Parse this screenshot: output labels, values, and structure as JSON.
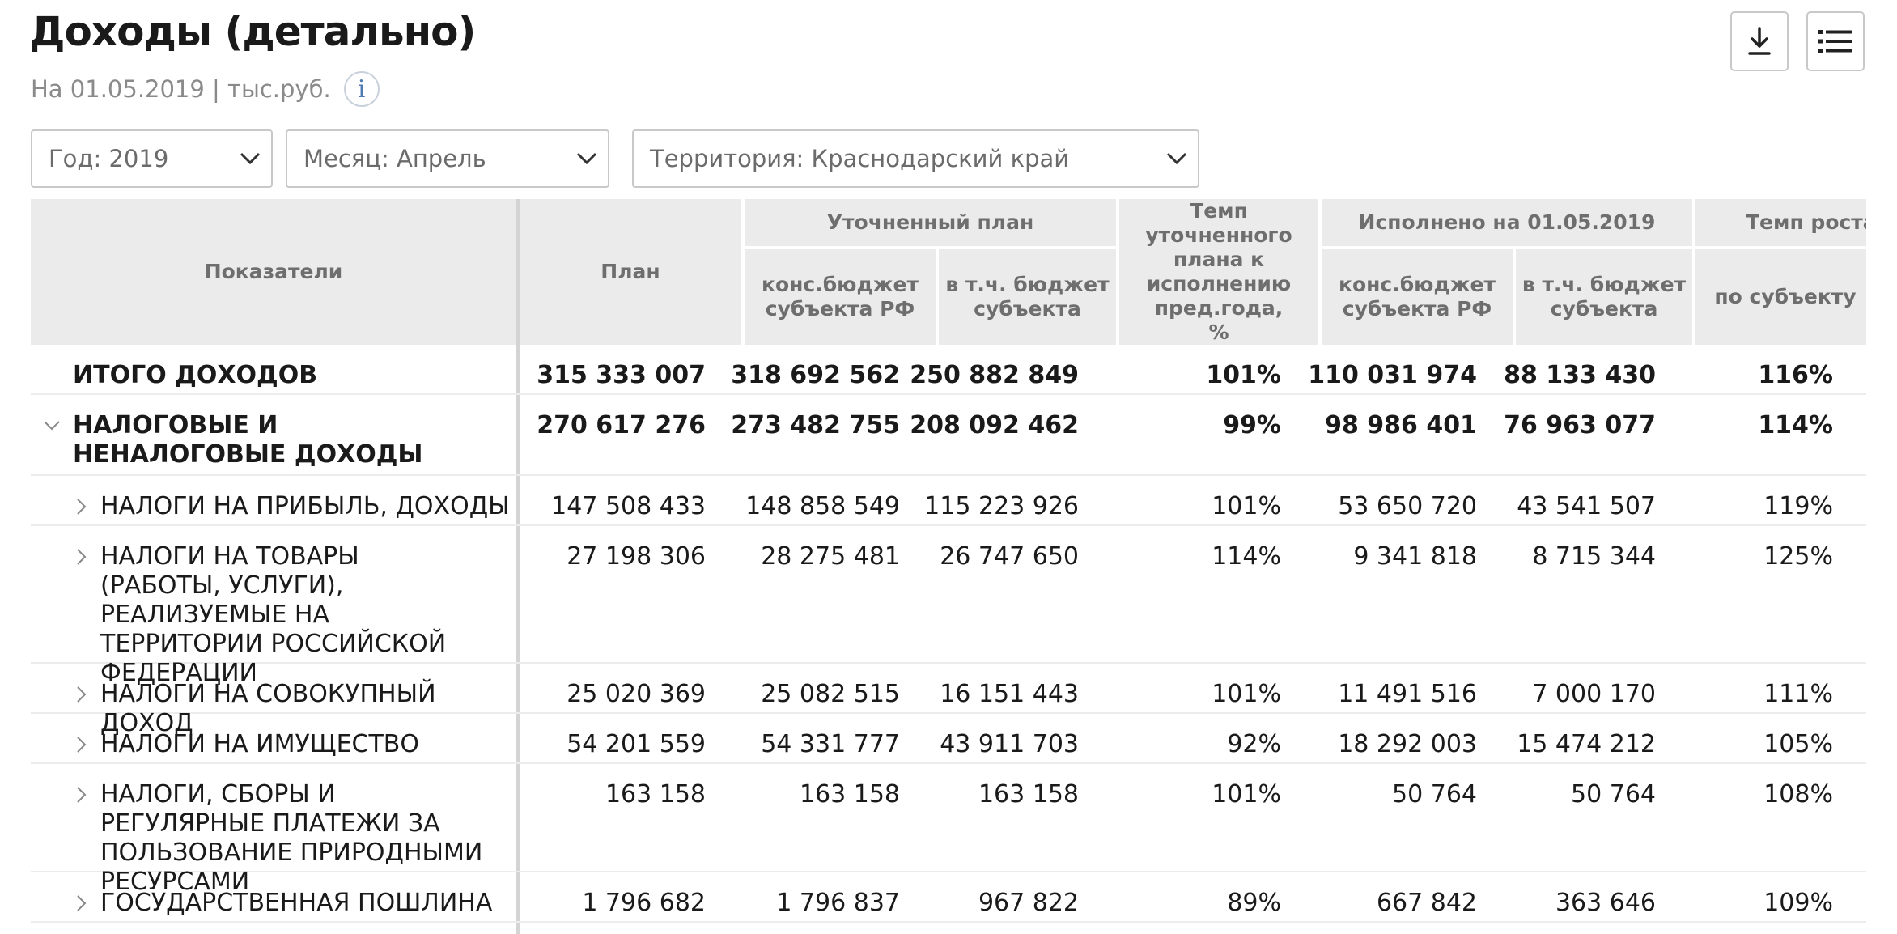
{
  "header": {
    "title": "Доходы (детально)",
    "subtitle": "На 01.05.2019 | тыс.руб.",
    "info_glyph": "i"
  },
  "filters": {
    "year": "Год: 2019",
    "month": "Месяц: Апрель",
    "territory": "Территория: Краснодарский край"
  },
  "table": {
    "columns": {
      "indicators": "Показатели",
      "plan": "План",
      "refined_plan": "Уточненный план",
      "cons_budget": "конс.бюджет субъекта РФ",
      "incl_budget": "в т.ч. бюджет субъекта",
      "rate_refined": "Темп уточненного плана к исполнению пред.года, %",
      "executed": "Исполнено на 01.05.2019",
      "exec_cons": "конс.бюджет субъекта РФ",
      "exec_incl": "в т.ч. бюджет субъекта",
      "growth": "Темп роста к со",
      "by_subject": "по субъекту"
    },
    "rows": [
      {
        "name": "ИТОГО ДОХОДОВ",
        "plan": "315 333 007",
        "cons": "318 692 562",
        "incl": "250 882 849",
        "rate": "101%",
        "e_cons": "110 031 974",
        "e_incl": "88 133 430",
        "growth": "116%"
      },
      {
        "name": "НАЛОГОВЫЕ И НЕНАЛОГОВЫЕ ДОХОДЫ",
        "plan": "270 617 276",
        "cons": "273 482 755",
        "incl": "208 092 462",
        "rate": "99%",
        "e_cons": "98 986 401",
        "e_incl": "76 963 077",
        "growth": "114%"
      },
      {
        "name": "НАЛОГИ НА ПРИБЫЛЬ, ДОХОДЫ",
        "plan": "147 508 433",
        "cons": "148 858 549",
        "incl": "115 223 926",
        "rate": "101%",
        "e_cons": "53 650 720",
        "e_incl": "43 541 507",
        "growth": "119%"
      },
      {
        "name": "НАЛОГИ НА ТОВАРЫ (РАБОТЫ, УСЛУГИ), РЕАЛИЗУЕМЫЕ НА ТЕРРИТОРИИ РОССИЙСКОЙ ФЕДЕРАЦИИ",
        "plan": "27 198 306",
        "cons": "28 275 481",
        "incl": "26 747 650",
        "rate": "114%",
        "e_cons": "9 341 818",
        "e_incl": "8 715 344",
        "growth": "125%"
      },
      {
        "name": "НАЛОГИ НА СОВОКУПНЫЙ ДОХОД",
        "plan": "25 020 369",
        "cons": "25 082 515",
        "incl": "16 151 443",
        "rate": "101%",
        "e_cons": "11 491 516",
        "e_incl": "7 000 170",
        "growth": "111%"
      },
      {
        "name": "НАЛОГИ НА ИМУЩЕСТВО",
        "plan": "54 201 559",
        "cons": "54 331 777",
        "incl": "43 911 703",
        "rate": "92%",
        "e_cons": "18 292 003",
        "e_incl": "15 474 212",
        "growth": "105%"
      },
      {
        "name": "НАЛОГИ, СБОРЫ И РЕГУЛЯРНЫЕ ПЛАТЕЖИ ЗА ПОЛЬЗОВАНИЕ ПРИРОДНЫМИ РЕСУРСАМИ",
        "plan": "163 158",
        "cons": "163 158",
        "incl": "163 158",
        "rate": "101%",
        "e_cons": "50 764",
        "e_incl": "50 764",
        "growth": "108%"
      },
      {
        "name": "ГОСУДАРСТВЕННАЯ ПОШЛИНА",
        "plan": "1 796 682",
        "cons": "1 796 837",
        "incl": "967 822",
        "rate": "89%",
        "e_cons": "667 842",
        "e_incl": "363 646",
        "growth": "109%"
      }
    ]
  }
}
